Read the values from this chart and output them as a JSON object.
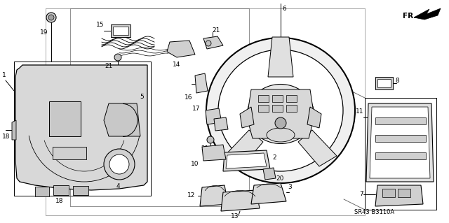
{
  "background_color": "#ffffff",
  "diagram_code": "SR43 B3110A",
  "fr_label": "FR.",
  "line_color": "#000000",
  "text_fontsize": 6.5,
  "fig_width": 6.4,
  "fig_height": 3.19,
  "dpi": 100,
  "gray1": "#c8c8c8",
  "gray2": "#e0e0e0",
  "gray3": "#a0a0a0"
}
